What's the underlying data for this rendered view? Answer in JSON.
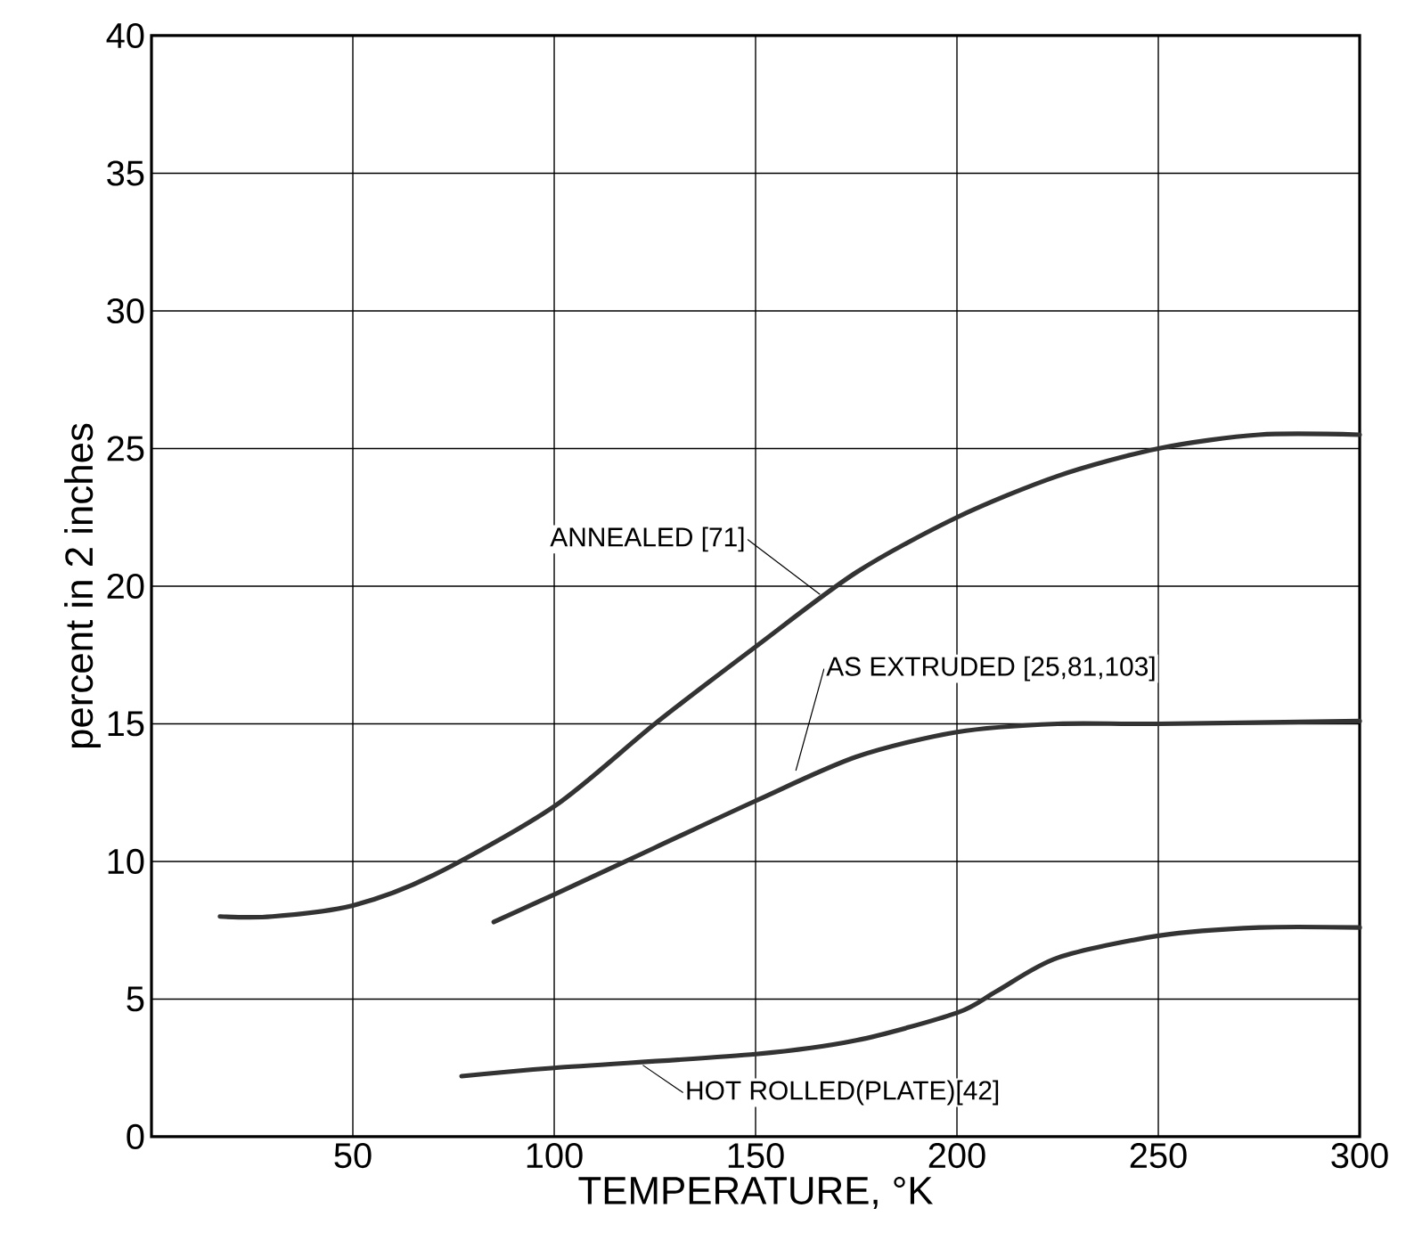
{
  "chart_data": {
    "type": "line",
    "xlabel": "TEMPERATURE,  °K",
    "ylabel": "percent in 2 inches",
    "xlim": [
      0,
      300
    ],
    "xticks": [
      50,
      100,
      150,
      200,
      250,
      300
    ],
    "ylim": [
      0,
      40
    ],
    "yticks": [
      0,
      5,
      10,
      15,
      20,
      25,
      30,
      35,
      40
    ],
    "grid": true,
    "marker": "none",
    "line_style": "solid",
    "annotations": [
      {
        "text": "ANNEALED [71]",
        "x": 166,
        "y": 19.7
      },
      {
        "text": "AS EXTRUDED [25,81,103]",
        "x": 160,
        "y": 13.3
      },
      {
        "text": "HOT ROLLED(PLATE)[42]",
        "x": 122,
        "y": 2.6
      }
    ],
    "series": [
      {
        "color": "#333333",
        "x": [
          17,
          30,
          50,
          70,
          100,
          125,
          150,
          175,
          200,
          225,
          250,
          275,
          300
        ],
        "values": [
          8,
          8,
          8.4,
          9.5,
          12,
          15,
          17.8,
          20.5,
          22.5,
          24,
          25,
          25.5,
          25.5
        ]
      },
      {
        "color": "#333333",
        "x": [
          85,
          100,
          125,
          150,
          175,
          200,
          225,
          250,
          300
        ],
        "values": [
          7.8,
          8.8,
          10.5,
          12.2,
          13.8,
          14.7,
          15,
          15,
          15.1
        ]
      },
      {
        "color": "#333333",
        "x": [
          77,
          100,
          150,
          175,
          200,
          210,
          225,
          250,
          275,
          300
        ],
        "values": [
          2.2,
          2.5,
          3,
          3.5,
          4.5,
          5.3,
          6.5,
          7.3,
          7.6,
          7.6
        ]
      }
    ]
  }
}
